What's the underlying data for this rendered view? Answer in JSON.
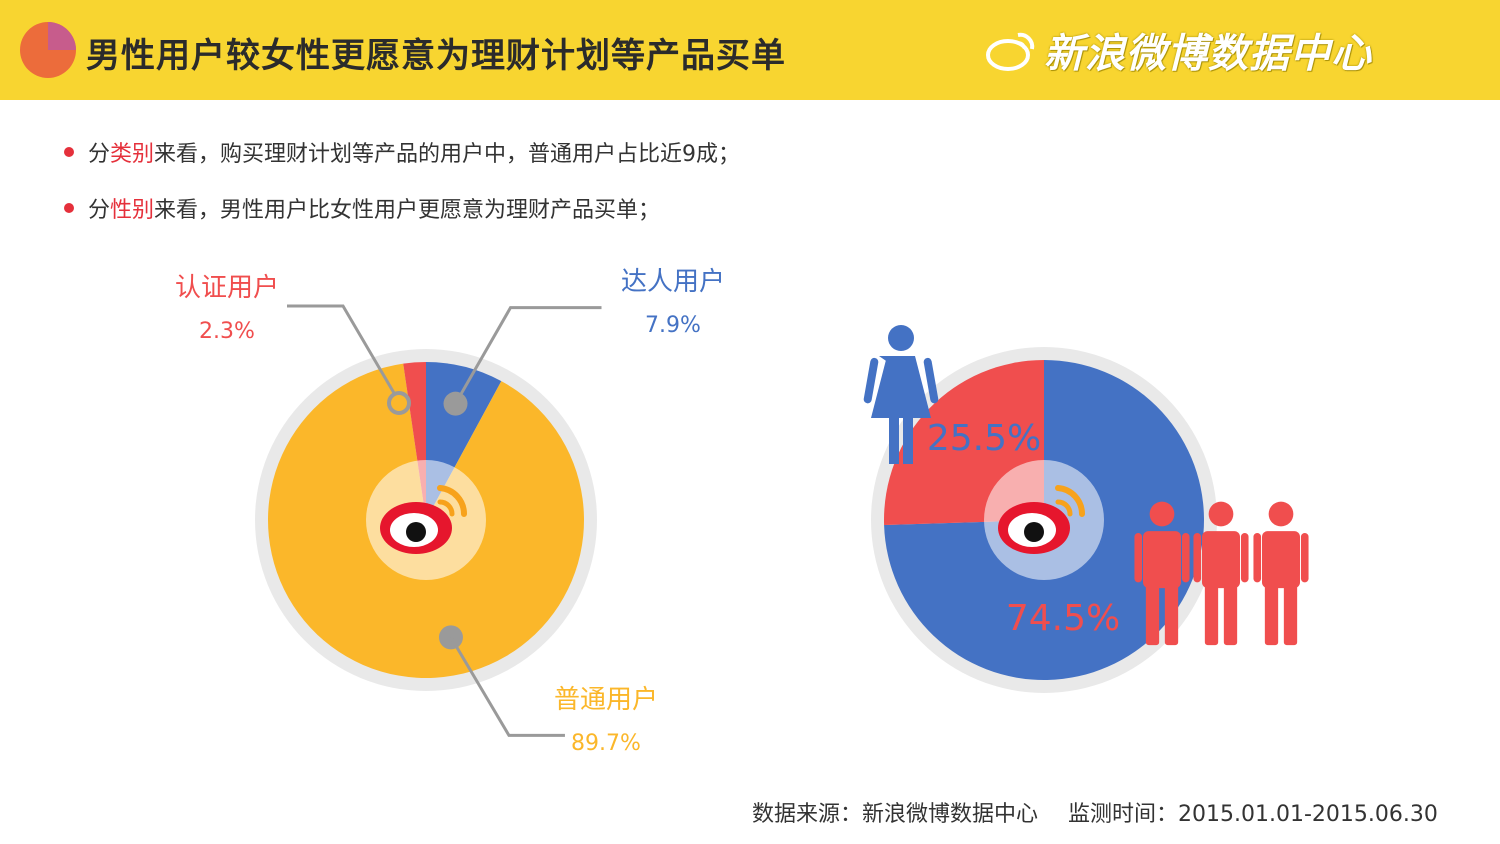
{
  "header": {
    "title": "男性用户较女性更愿意为理财计划等产品买单",
    "brand": "新浪微博数据中心"
  },
  "bullets": [
    {
      "prefix": "分",
      "highlight": "类别",
      "suffix": "来看，购买理财计划等产品的用户中，普通用户占比近9成；"
    },
    {
      "prefix": "分",
      "highlight": "性别",
      "suffix": "来看，男性用户比女性用户更愿意为理财产品买单；"
    }
  ],
  "colors": {
    "header_bg": "#f8d530",
    "orange": "#fbb72a",
    "blue": "#4472c4",
    "red": "#f04e4e",
    "ring": "#e9e9e9"
  },
  "chart_data": [
    {
      "type": "pie",
      "categories": [
        "达人用户",
        "普通用户",
        "认证用户"
      ],
      "values": [
        7.9,
        89.7,
        2.3
      ],
      "value_labels": [
        "7.9%",
        "89.7%",
        "2.3%"
      ],
      "colors": [
        "#4472c4",
        "#fbb72a",
        "#f04e4e"
      ]
    },
    {
      "type": "pie",
      "categories": [
        "男性",
        "女性"
      ],
      "values": [
        74.5,
        25.5
      ],
      "value_labels": [
        "74.5%",
        "25.5%"
      ],
      "colors": [
        "#4472c4",
        "#f04e4e"
      ]
    }
  ],
  "icons": [
    "pie-chart-icon",
    "weibo-logo-icon",
    "female-user-icon",
    "male-user-icon"
  ],
  "footer": {
    "source": "数据来源：新浪微博数据中心",
    "period": "监测时间：2015.01.01-2015.06.30"
  }
}
